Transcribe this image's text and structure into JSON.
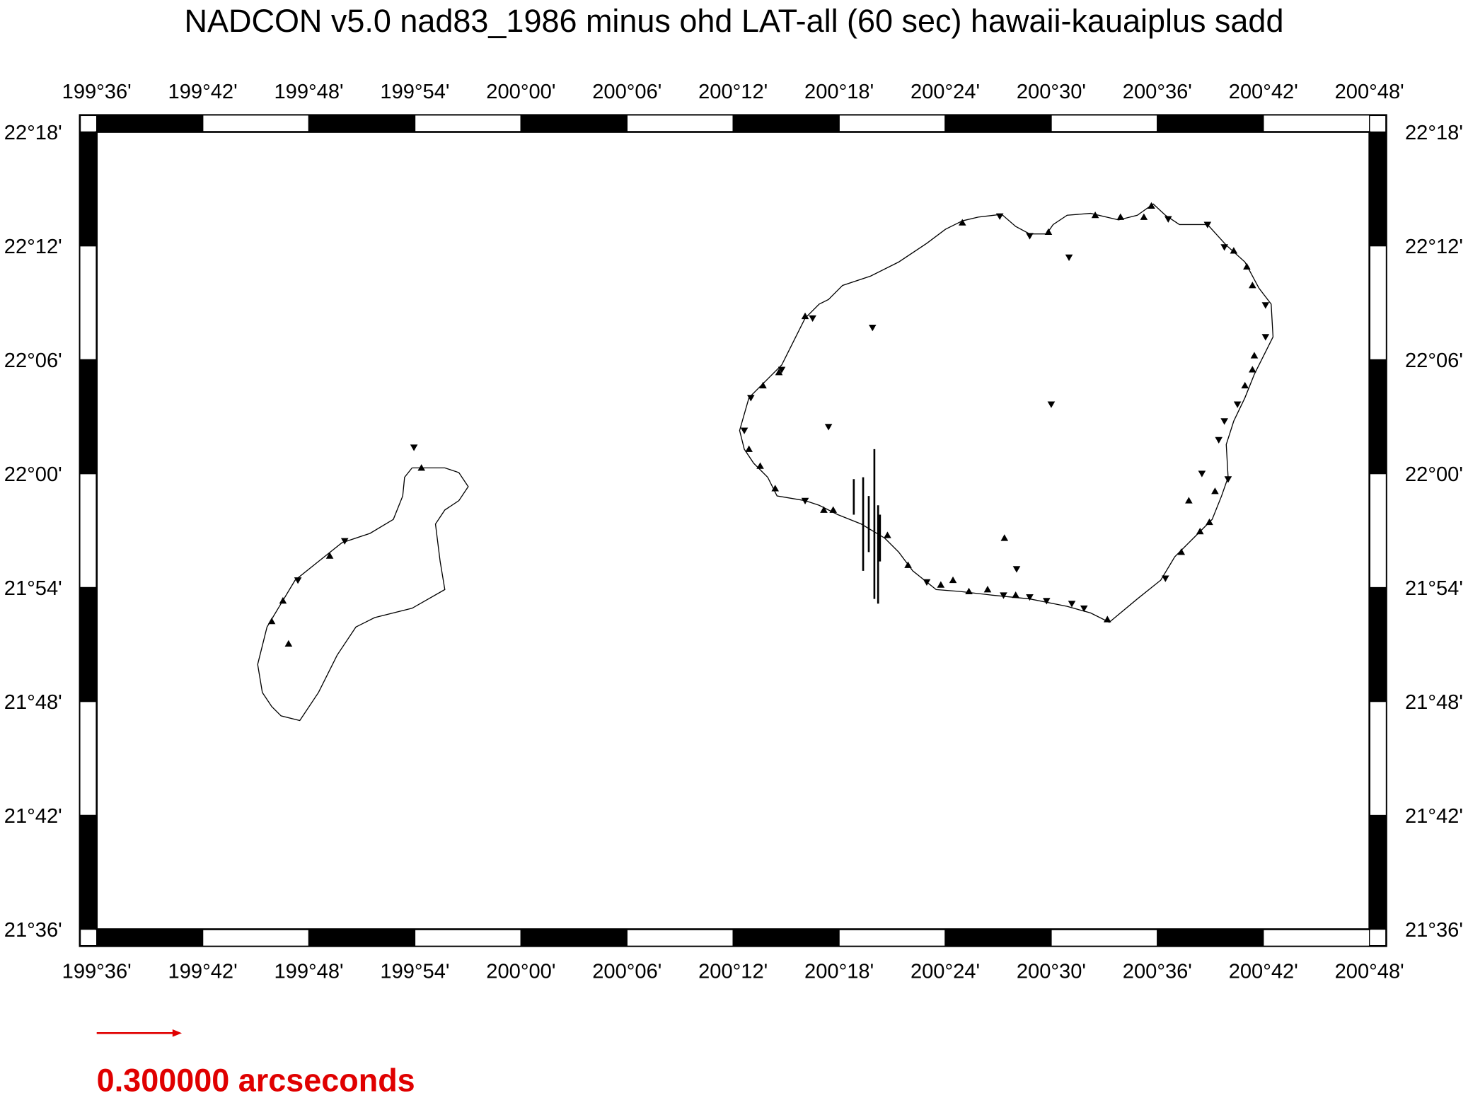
{
  "title": "NADCON v5.0 nad83_1986 minus ohd LAT-all (60 sec) hawaii-kauaiplus sadd",
  "map": {
    "xlim": [
      199.6,
      200.8
    ],
    "ylim": [
      21.6,
      22.3
    ],
    "xticks": [
      {
        "value": 199.6,
        "label": "199°36'"
      },
      {
        "value": 199.7,
        "label": "199°42'"
      },
      {
        "value": 199.8,
        "label": "199°48'"
      },
      {
        "value": 199.9,
        "label": "199°54'"
      },
      {
        "value": 200.0,
        "label": "200°00'"
      },
      {
        "value": 200.1,
        "label": "200°06'"
      },
      {
        "value": 200.2,
        "label": "200°12'"
      },
      {
        "value": 200.3,
        "label": "200°18'"
      },
      {
        "value": 200.4,
        "label": "200°24'"
      },
      {
        "value": 200.5,
        "label": "200°30'"
      },
      {
        "value": 200.6,
        "label": "200°36'"
      },
      {
        "value": 200.7,
        "label": "200°42'"
      },
      {
        "value": 200.8,
        "label": "200°48'"
      }
    ],
    "yticks": [
      {
        "value": 21.6,
        "label": "21°36'"
      },
      {
        "value": 21.7,
        "label": "21°42'"
      },
      {
        "value": 21.8,
        "label": "21°48'"
      },
      {
        "value": 21.9,
        "label": "21°54'"
      },
      {
        "value": 22.0,
        "label": "22°00'"
      },
      {
        "value": 22.1,
        "label": "22°06'"
      },
      {
        "value": 22.2,
        "label": "22°12'"
      },
      {
        "value": 22.3,
        "label": "22°18'"
      }
    ]
  },
  "scale_label": "0.300000 arcseconds"
}
